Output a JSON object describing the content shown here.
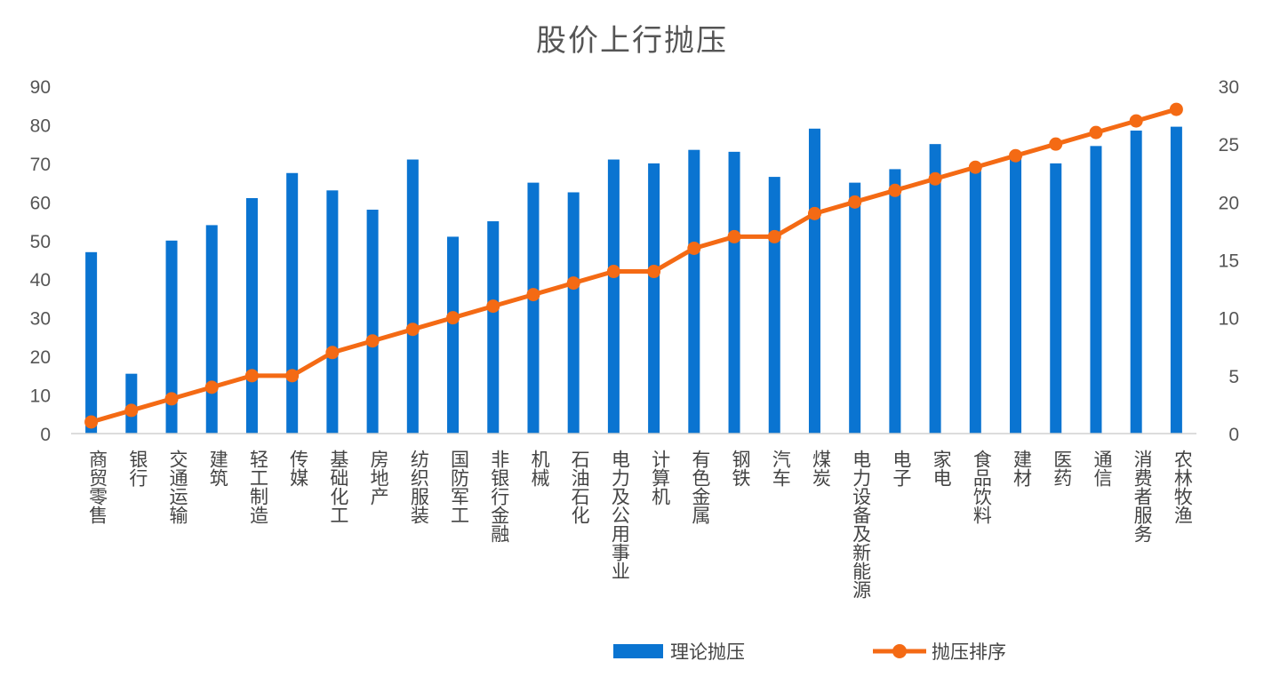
{
  "chart_data": {
    "type": "bar+line",
    "title": "股价上行抛压",
    "categories": [
      "商贸零售",
      "银行",
      "交通运输",
      "建筑",
      "轻工制造",
      "传媒",
      "基础化工",
      "房地产",
      "纺织服装",
      "国防军工",
      "非银行金融",
      "机械",
      "石油石化",
      "电力及公用事业",
      "计算机",
      "有色金属",
      "钢铁",
      "汽车",
      "煤炭",
      "电力设备及新能源",
      "电子",
      "家电",
      "食品饮料",
      "建材",
      "医药",
      "通信",
      "消费者服务",
      "农林牧渔"
    ],
    "series": [
      {
        "name": "理论抛压",
        "type": "bar",
        "axis": "left",
        "color": "#0A74D1",
        "values": [
          47,
          15.5,
          50,
          54,
          61,
          67.5,
          63,
          58,
          71,
          51,
          55,
          65,
          62.5,
          71,
          70,
          73.5,
          73,
          66.5,
          79,
          65,
          68.5,
          75,
          69,
          72.5,
          70,
          74.5,
          78.5,
          79.5
        ]
      },
      {
        "name": "抛压排序",
        "type": "line",
        "axis": "right",
        "color": "#F46A14",
        "values": [
          1,
          2,
          3,
          4,
          5,
          5,
          7,
          8,
          9,
          10,
          11,
          12,
          13,
          14,
          14,
          16,
          17,
          17,
          19,
          20,
          21,
          22,
          23,
          24,
          25,
          26,
          27,
          28
        ]
      }
    ],
    "y_left": {
      "min": 0,
      "max": 90,
      "ticks": [
        "0",
        "10",
        "20",
        "30",
        "40",
        "50",
        "60",
        "70",
        "80",
        "90"
      ]
    },
    "y_right": {
      "min": 0,
      "max": 30,
      "ticks": [
        "0",
        "5",
        "10",
        "15",
        "20",
        "25",
        "30"
      ]
    },
    "legend_position": "bottom",
    "grid": false
  }
}
